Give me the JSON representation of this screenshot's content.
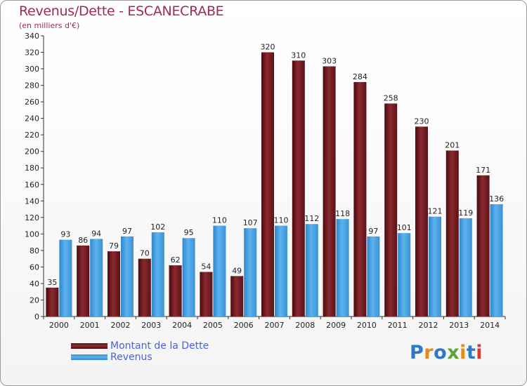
{
  "title": "Revenus/Dette - ESCANECRABE",
  "subtitle": "(en milliers d'€)",
  "logo": {
    "text": "Proxiti",
    "colors": [
      "#2f78c8",
      "#e58a1a",
      "#2f78c8",
      "#5aa632",
      "#e58a1a",
      "#2f78c8",
      "#d83a2a"
    ]
  },
  "chart_data": {
    "type": "bar",
    "categories": [
      "2000",
      "2001",
      "2002",
      "2003",
      "2004",
      "2005",
      "2006",
      "2007",
      "2008",
      "2009",
      "2010",
      "2011",
      "2012",
      "2013",
      "2014"
    ],
    "series": [
      {
        "name": "Montant de la Dette",
        "color": "#7a1f24",
        "values": [
          35,
          86,
          79,
          70,
          62,
          54,
          49,
          320,
          310,
          303,
          284,
          258,
          230,
          201,
          171
        ]
      },
      {
        "name": "Revenus",
        "color": "#4aa3e3",
        "values": [
          93,
          94,
          97,
          102,
          95,
          110,
          107,
          110,
          112,
          118,
          97,
          101,
          121,
          119,
          136
        ]
      }
    ],
    "ylim": [
      0,
      340
    ],
    "yticks": [
      0,
      20,
      40,
      60,
      80,
      100,
      120,
      140,
      160,
      180,
      200,
      220,
      240,
      260,
      280,
      300,
      320,
      340
    ],
    "grid": false,
    "legend_position": "bottom-left"
  }
}
